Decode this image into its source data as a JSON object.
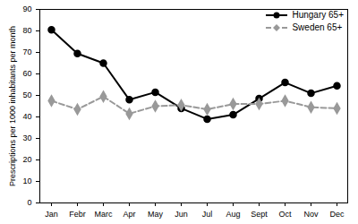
{
  "chart_data": {
    "type": "line",
    "y_label": "Prescriptions per 1000 inhabitants per month",
    "categories": [
      "Jan",
      "Febr",
      "Marc",
      "Apr",
      "May",
      "Jun",
      "Jul",
      "Aug",
      "Sept",
      "Oct",
      "Nov",
      "Dec"
    ],
    "series": [
      {
        "name": "Hungary 65+",
        "color": "#000000",
        "marker": "circle",
        "line_style": "solid",
        "values": [
          80.5,
          69.5,
          65,
          48,
          51.5,
          44,
          39,
          41,
          48.5,
          56,
          51,
          54.5
        ]
      },
      {
        "name": "Sweden 65+",
        "color": "#999999",
        "marker": "diamond",
        "line_style": "dashed",
        "values": [
          47.5,
          43.5,
          49.5,
          41.5,
          45,
          45.5,
          43.5,
          46,
          46,
          47.5,
          44.5,
          44
        ]
      }
    ],
    "ylim": [
      0,
      90
    ],
    "yticks": [
      0,
      10,
      20,
      30,
      40,
      50,
      60,
      70,
      80,
      90
    ],
    "grid": false,
    "legend": "top-right"
  }
}
